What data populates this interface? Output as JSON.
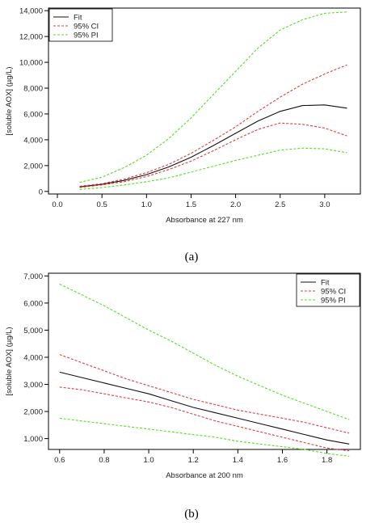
{
  "colors": {
    "fit": "#111111",
    "ci": "#e03c3c",
    "pi": "#55dd22"
  },
  "chart_data": [
    {
      "type": "line",
      "panel_label": "(a)",
      "xlabel": "Absorbance at 227 nm",
      "ylabel": "[soluble AOX] (µg/L)",
      "xlim": [
        -0.1,
        3.4
      ],
      "ylim": [
        -200,
        14200
      ],
      "xticks": [
        0.0,
        0.5,
        1.0,
        1.5,
        2.0,
        2.5,
        3.0
      ],
      "xtick_labels": [
        "0.0",
        "0.5",
        "1.0",
        "1.5",
        "2.0",
        "2.5",
        "3.0"
      ],
      "yticks": [
        0,
        2000,
        4000,
        6000,
        8000,
        10000,
        12000,
        14000
      ],
      "ytick_labels": [
        "0",
        "2,000",
        "4,000",
        "6,000",
        "8,000",
        "10,000",
        "12,000",
        "14,000"
      ],
      "grid": false,
      "legend_position": "top-left",
      "x": [
        0.25,
        0.5,
        0.75,
        1.0,
        1.25,
        1.5,
        1.75,
        2.0,
        2.25,
        2.5,
        2.75,
        3.0,
        3.25
      ],
      "series": [
        {
          "name": "Fit",
          "style": "solid",
          "color_key": "fit",
          "values": [
            350,
            550,
            850,
            1300,
            1900,
            2650,
            3550,
            4500,
            5450,
            6200,
            6650,
            6700,
            6450
          ]
        },
        {
          "name": "95% CI",
          "style": "dashed",
          "color_key": "ci",
          "values": [
            400,
            600,
            950,
            1450,
            2100,
            2950,
            3950,
            5000,
            6200,
            7300,
            8300,
            9100,
            9800
          ]
        },
        {
          "name": "95% CI",
          "style": "dashed",
          "color_key": "ci",
          "values": [
            300,
            500,
            750,
            1150,
            1700,
            2350,
            3150,
            4000,
            4800,
            5300,
            5200,
            4900,
            4300
          ]
        },
        {
          "name": "95% PI",
          "style": "dashed",
          "color_key": "pi",
          "values": [
            700,
            1100,
            1850,
            2800,
            4100,
            5700,
            7500,
            9300,
            11100,
            12500,
            13300,
            13800,
            13900
          ]
        },
        {
          "name": "95% PI",
          "style": "dashed",
          "color_key": "pi",
          "values": [
            150,
            300,
            500,
            750,
            1050,
            1500,
            1950,
            2400,
            2800,
            3200,
            3350,
            3300,
            3000
          ]
        }
      ],
      "legend": [
        {
          "label": "Fit",
          "style": "solid",
          "color_key": "fit"
        },
        {
          "label": "95% CI",
          "style": "dashed",
          "color_key": "ci"
        },
        {
          "label": "95% PI",
          "style": "dashed",
          "color_key": "pi"
        }
      ]
    },
    {
      "type": "line",
      "panel_label": "(b)",
      "xlabel": "Absorbance at 200 nm",
      "ylabel": "[soluble AOX] (µg/L)",
      "xlim": [
        0.55,
        1.95
      ],
      "ylim": [
        600,
        7100
      ],
      "xticks": [
        0.6,
        0.8,
        1.0,
        1.2,
        1.4,
        1.6,
        1.8
      ],
      "xtick_labels": [
        "0.6",
        "0.8",
        "1.0",
        "1.2",
        "1.4",
        "1.6",
        "1.8"
      ],
      "yticks": [
        1000,
        2000,
        3000,
        4000,
        5000,
        6000,
        7000
      ],
      "ytick_labels": [
        "1,000",
        "2,000",
        "3,000",
        "4,000",
        "5,000",
        "6,000",
        "7,000"
      ],
      "grid": false,
      "legend_position": "top-right",
      "x": [
        0.6,
        0.7,
        0.8,
        0.9,
        1.0,
        1.1,
        1.2,
        1.3,
        1.4,
        1.5,
        1.6,
        1.7,
        1.8,
        1.9
      ],
      "series": [
        {
          "name": "Fit",
          "style": "solid",
          "color_key": "fit",
          "values": [
            3450,
            3250,
            3050,
            2850,
            2650,
            2400,
            2150,
            1950,
            1750,
            1550,
            1350,
            1150,
            950,
            800
          ]
        },
        {
          "name": "95% CI",
          "style": "dashed",
          "color_key": "ci",
          "values": [
            4100,
            3800,
            3500,
            3200,
            2950,
            2700,
            2450,
            2250,
            2050,
            1900,
            1750,
            1600,
            1400,
            1200
          ]
        },
        {
          "name": "95% CI",
          "style": "dashed",
          "color_key": "ci",
          "values": [
            2900,
            2800,
            2650,
            2500,
            2350,
            2150,
            1900,
            1650,
            1450,
            1250,
            1050,
            850,
            650,
            550
          ]
        },
        {
          "name": "95% PI",
          "style": "dashed",
          "color_key": "pi",
          "values": [
            6700,
            6300,
            5900,
            5450,
            5000,
            4600,
            4150,
            3700,
            3300,
            2950,
            2600,
            2300,
            2000,
            1700
          ]
        },
        {
          "name": "95% PI",
          "style": "dashed",
          "color_key": "pi",
          "values": [
            1750,
            1650,
            1550,
            1450,
            1350,
            1250,
            1150,
            1050,
            900,
            800,
            700,
            600,
            450,
            350
          ]
        }
      ],
      "legend": [
        {
          "label": "Fit",
          "style": "solid",
          "color_key": "fit"
        },
        {
          "label": "95% CI",
          "style": "dashed",
          "color_key": "ci"
        },
        {
          "label": "95% PI",
          "style": "dashed",
          "color_key": "pi"
        }
      ]
    }
  ]
}
